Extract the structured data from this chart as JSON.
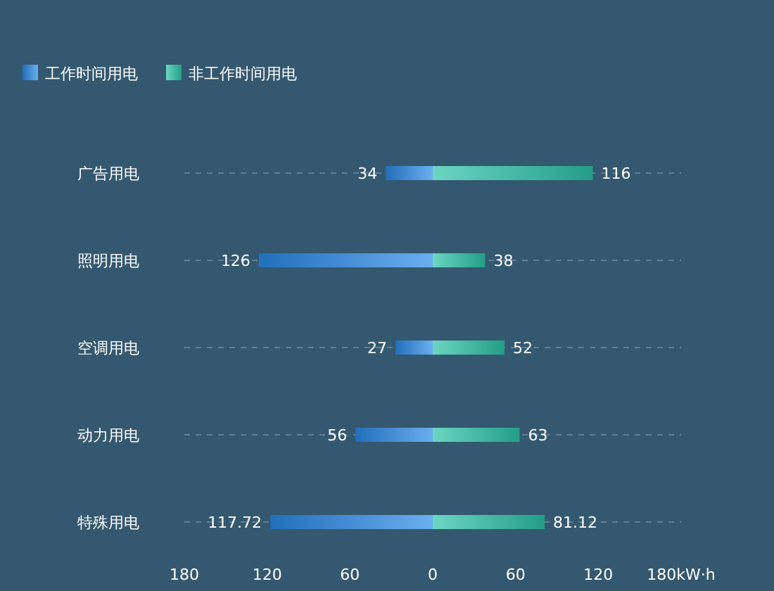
{
  "chart_data": {
    "type": "bar",
    "orientation": "horizontal",
    "categories": [
      "广告用电",
      "照明用电",
      "空调用电",
      "动力用电",
      "特殊用电"
    ],
    "series": [
      {
        "name": "工作时间用电",
        "color": "#2a8be8",
        "base": [
          -34,
          -126,
          -27,
          -56,
          -117.72
        ],
        "values": [
          34,
          126,
          27,
          56,
          117.72
        ],
        "value_labels": [
          "34",
          "126",
          "27",
          "56",
          "117.72"
        ]
      },
      {
        "name": "非工作时间用电",
        "color": "#2cc5a8",
        "values": [
          116,
          38,
          52,
          63,
          81.12
        ],
        "value_labels": [
          "116",
          "38",
          "52",
          "63",
          "81.12"
        ]
      }
    ],
    "xlim": [
      -180,
      180
    ],
    "xticks": [
      {
        "value": -180,
        "label": "180"
      },
      {
        "value": -120,
        "label": "120"
      },
      {
        "value": -60,
        "label": "60"
      },
      0,
      60,
      120,
      {
        "value": 180,
        "label": "180kW·h"
      }
    ],
    "grid": "y",
    "legend": "top left"
  }
}
